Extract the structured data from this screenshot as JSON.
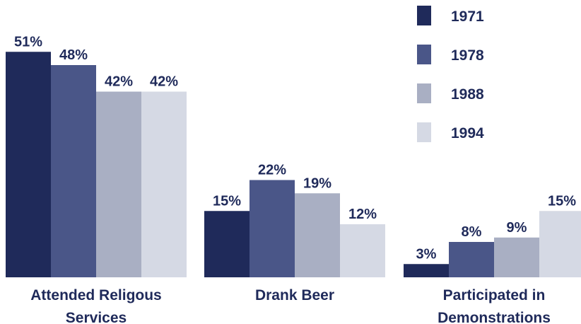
{
  "chart_data": {
    "type": "bar",
    "title": "",
    "xlabel": "",
    "ylabel": "",
    "unit": "%",
    "ylim": [
      0,
      55
    ],
    "grid": false,
    "legend_position": "top-right",
    "categories": [
      [
        "Attended Religous",
        "Services"
      ],
      [
        "Drank Beer"
      ],
      [
        "Participated in",
        "Demonstrations"
      ]
    ],
    "series": [
      {
        "name": "1971",
        "color": "#1f2a5a",
        "values": [
          51,
          15,
          3
        ]
      },
      {
        "name": "1978",
        "color": "#4a5688",
        "values": [
          48,
          22,
          8
        ]
      },
      {
        "name": "1988",
        "color": "#a9afc3",
        "values": [
          42,
          19,
          9
        ]
      },
      {
        "name": "1994",
        "color": "#d5d9e4",
        "values": [
          42,
          12,
          15
        ]
      }
    ],
    "value_labels": [
      [
        "51%",
        "48%",
        "42%",
        "42%"
      ],
      [
        "15%",
        "22%",
        "19%",
        "12%"
      ],
      [
        "3%",
        "8%",
        "9%",
        "15%"
      ]
    ]
  }
}
